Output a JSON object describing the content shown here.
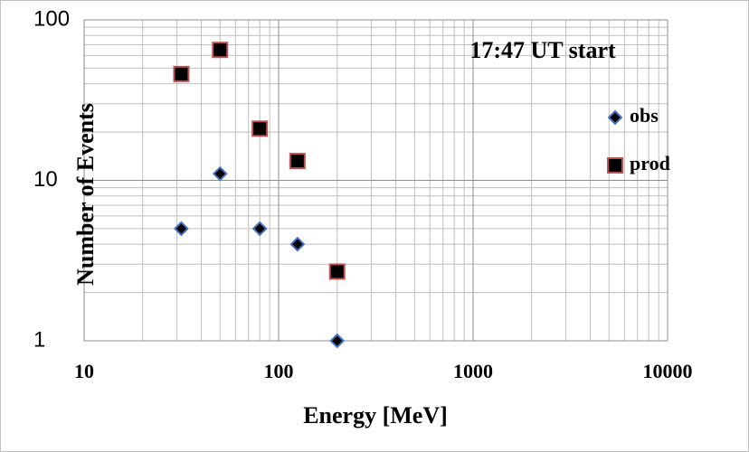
{
  "chart_data": {
    "type": "scatter",
    "x": [
      31.6,
      50,
      80,
      125,
      200
    ],
    "series": [
      {
        "name": "obs",
        "marker": "diamond",
        "color": "#000000",
        "edgecolor": "#4472c4",
        "values": [
          5,
          11,
          5,
          4,
          1
        ]
      },
      {
        "name": "prod",
        "marker": "square",
        "color": "#000000",
        "edgecolor": "#c0504d",
        "values": [
          46,
          65,
          21,
          13.2,
          2.7
        ]
      }
    ],
    "xlabel": "Energy [MeV]",
    "ylabel": "Number of Events",
    "annotation": "17:47 UT start",
    "xscale": "log",
    "yscale": "log",
    "xlim": [
      10,
      10000
    ],
    "ylim": [
      1,
      100
    ],
    "xticks": [
      10,
      100,
      1000,
      10000
    ],
    "yticks": [
      1,
      10,
      100
    ],
    "grid": true,
    "minor_grid": true,
    "legend": "right"
  }
}
